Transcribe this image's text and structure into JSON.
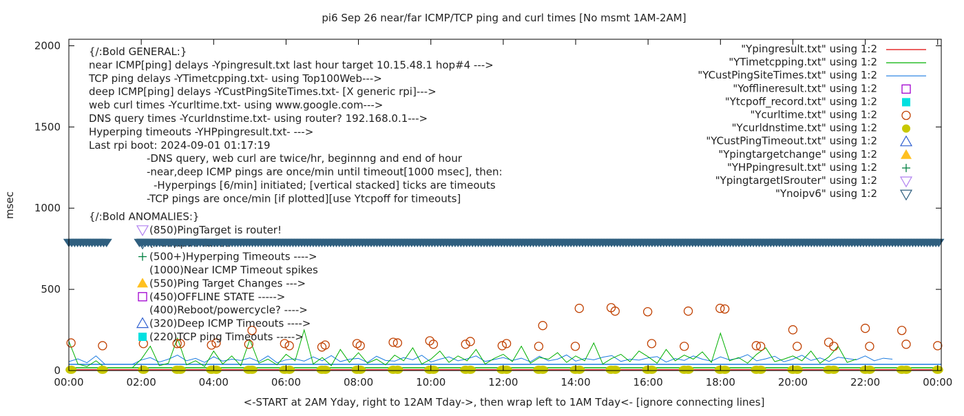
{
  "chart_data": {
    "type": "line",
    "title": "pi6 Sep 26  near/far ICMP/TCP ping and curl times [No msmt 1AM-2AM]",
    "xlabel": "<-START at 2AM Yday, right to 12AM Tday->, then wrap left to 1AM Tday<- [ignore connecting lines]",
    "ylabel": "msec",
    "xlim": [
      0,
      24.1
    ],
    "ylim": [
      0,
      2040
    ],
    "x_unit": "hour of day",
    "xticks": [
      "00:00",
      "02:00",
      "04:00",
      "06:00",
      "08:00",
      "10:00",
      "12:00",
      "14:00",
      "16:00",
      "18:00",
      "20:00",
      "22:00",
      "00:00"
    ],
    "yticks": [
      0,
      500,
      1000,
      1500,
      2000
    ],
    "grid": false,
    "legend_placement": "top-right",
    "legend": [
      {
        "label": "\"Ypingresult.txt\" using 1:2",
        "marker": "line",
        "color": "#e00000"
      },
      {
        "label": "\"YTimetcpping.txt\" using 1:2",
        "marker": "line",
        "color": "#00b000"
      },
      {
        "label": "\"YCustPingSiteTimes.txt\" using 1:2",
        "marker": "line",
        "color": "#1a7ae0"
      },
      {
        "label": "\"Yofflineresult.txt\" using 1:2",
        "marker": "open-square",
        "color": "#a000d0"
      },
      {
        "label": "\"Ytcpoff_record.txt\" using 1:2",
        "marker": "filled-square",
        "color": "#00e0e0"
      },
      {
        "label": "\"Ycurltime.txt\" using 1:2",
        "marker": "open-circle",
        "color": "#c04000"
      },
      {
        "label": "\"Ycurldnstime.txt\" using 1:2",
        "marker": "filled-circle",
        "color": "#c8c800"
      },
      {
        "label": "\"YCustPingTimeout.txt\" using 1:2",
        "marker": "open-triangle-up",
        "color": "#3060d0"
      },
      {
        "label": "\"Ypingtargetchange\" using 1:2",
        "marker": "filled-triangle-up",
        "color": "#ffc020"
      },
      {
        "label": "\"YHPpingresult.txt\" using 1:2",
        "marker": "plus",
        "color": "#008040"
      },
      {
        "label": "\"YpingtargetISrouter\" using 1:2",
        "marker": "open-triangle-down",
        "color": "#b080f0"
      },
      {
        "label": "\"Ynoipv6\" using 1:2",
        "marker": "open-triangle-down",
        "color": "#2f5f7f"
      }
    ],
    "annotations_general": {
      "header": "{/:Bold GENERAL:}",
      "lines": [
        "near ICMP[ping] delays -Ypingresult.txt last hour target 10.15.48.1 hop#4 --->",
        "TCP ping delays -YTimetcpping.txt- using Top100Web--->",
        "deep ICMP[ping] delays -YCustPingSiteTimes.txt- [X generic rpi]--->",
        "web curl times -Ycurltime.txt- using www.google.com--->",
        "DNS query times -Ycurldnstime.txt- using router? 192.168.0.1--->",
        "Hyperping timeouts -YHPpingresult.txt- --->",
        "Last rpi boot: 2024-09-01 01:17:19"
      ],
      "notes": [
        "-DNS query, web curl are twice/hr, beginnng and end of hour",
        "-near,deep ICMP pings are once/min until timeout[1000 msec], then:",
        "  -Hyperpings [6/min] initiated; [vertical stacked] ticks are timeouts",
        "-TCP pings are once/min [if plotted][use Ytcpoff for timeouts]"
      ]
    },
    "annotations_anomalies": {
      "header": "{/:Bold ANOMALIES:}",
      "items": [
        {
          "text": "(850)PingTarget is router!",
          "marker": "open-triangle-down",
          "color": "#b080f0"
        },
        {
          "text": "(785)ipv6 failed",
          "marker": "open-triangle-down",
          "color": "#2f5f7f"
        },
        {
          "text": "(500+)Hyperping Timeouts ---->",
          "marker": "plus",
          "color": "#008040"
        },
        {
          "text": "(1000)Near ICMP Timeout spikes",
          "marker": "none",
          "color": ""
        },
        {
          "text": "(550)Ping Target Changes --->",
          "marker": "filled-triangle-up",
          "color": "#ffc020"
        },
        {
          "text": "(450)OFFLINE STATE ----->",
          "marker": "open-square",
          "color": "#a000d0"
        },
        {
          "text": "(400)Reboot/powercycle? ---->",
          "marker": "none",
          "color": ""
        },
        {
          "text": "(320)Deep ICMP Timeouts ---->",
          "marker": "open-triangle-up",
          "color": "#3060d0"
        },
        {
          "text": "(220)TCP ping Timeouts ----->",
          "marker": "filled-square",
          "color": "#00e0e0"
        }
      ]
    },
    "series": {
      "ping": {
        "x_step_hours": 0.25,
        "constant": 5
      },
      "tcp": {
        "x_step_hours": 0.25,
        "values": [
          180,
          40,
          25,
          60,
          17,
          17,
          17,
          17,
          70,
          150,
          30,
          45,
          200,
          35,
          60,
          25,
          120,
          40,
          90,
          30,
          190,
          45,
          70,
          35,
          100,
          60,
          250,
          40,
          80,
          30,
          130,
          50,
          110,
          45,
          70,
          35,
          95,
          60,
          140,
          40,
          70,
          120,
          50,
          90,
          60,
          130,
          40,
          75,
          100,
          55,
          150,
          45,
          80,
          70,
          110,
          50,
          90,
          60,
          170,
          40,
          75,
          100,
          55,
          120,
          85,
          45,
          130,
          60,
          95,
          70,
          115,
          50,
          230,
          60,
          80,
          45,
          100,
          140,
          55,
          70,
          90,
          60,
          120,
          45,
          85,
          150,
          50,
          70
        ]
      },
      "deep": {
        "x_step_hours": 0.25,
        "values": [
          55,
          72,
          48,
          90,
          38,
          38,
          38,
          38,
          65,
          80,
          52,
          70,
          95,
          60,
          75,
          50,
          85,
          58,
          70,
          62,
          78,
          55,
          90,
          48,
          66,
          72,
          58,
          84,
          60,
          92,
          55,
          70,
          75,
          50,
          88,
          62,
          58,
          80,
          66,
          94,
          52,
          70,
          84,
          60,
          72,
          90,
          56,
          68,
          80,
          62,
          76,
          54,
          88,
          60,
          70,
          96,
          58,
          74,
          66,
          82,
          92,
          56,
          70,
          64,
          78,
          86,
          52,
          74,
          62,
          90,
          70,
          58,
          84,
          66,
          76,
          98,
          60,
          72,
          88,
          54,
          70,
          94,
          62,
          78,
          56,
          82,
          74,
          66,
          90,
          60,
          76,
          70
        ]
      },
      "curl": [
        [
          0.06,
          170
        ],
        [
          0.93,
          153
        ],
        [
          2.06,
          166
        ],
        [
          2.99,
          166
        ],
        [
          3.08,
          166
        ],
        [
          3.94,
          157
        ],
        [
          4.07,
          170
        ],
        [
          4.97,
          162
        ],
        [
          5.06,
          247
        ],
        [
          5.96,
          166
        ],
        [
          6.09,
          153
        ],
        [
          6.99,
          145
        ],
        [
          7.08,
          157
        ],
        [
          7.96,
          166
        ],
        [
          8.05,
          153
        ],
        [
          8.96,
          174
        ],
        [
          9.08,
          170
        ],
        [
          9.97,
          183
        ],
        [
          10.07,
          162
        ],
        [
          10.96,
          162
        ],
        [
          11.09,
          179
        ],
        [
          11.97,
          153
        ],
        [
          12.09,
          166
        ],
        [
          12.98,
          149
        ],
        [
          13.09,
          277
        ],
        [
          13.99,
          149
        ],
        [
          14.1,
          383
        ],
        [
          14.98,
          387
        ],
        [
          15.09,
          366
        ],
        [
          15.99,
          362
        ],
        [
          16.1,
          166
        ],
        [
          17.0,
          149
        ],
        [
          17.11,
          366
        ],
        [
          17.99,
          383
        ],
        [
          18.12,
          379
        ],
        [
          18.99,
          153
        ],
        [
          19.11,
          149
        ],
        [
          20.0,
          251
        ],
        [
          20.12,
          149
        ],
        [
          20.99,
          174
        ],
        [
          21.13,
          149
        ],
        [
          22.0,
          260
        ],
        [
          22.12,
          149
        ],
        [
          23.01,
          247
        ],
        [
          23.13,
          162
        ],
        [
          24.0,
          153
        ]
      ],
      "dns": {
        "value": 5,
        "x": [
          0.06,
          0.93,
          2.06,
          2.99,
          3.08,
          3.94,
          4.07,
          4.97,
          5.06,
          5.96,
          6.09,
          6.99,
          7.08,
          7.96,
          8.05,
          8.96,
          9.08,
          9.97,
          10.07,
          10.96,
          11.09,
          11.97,
          12.09,
          12.98,
          13.09,
          13.99,
          14.1,
          14.98,
          15.09,
          15.99,
          16.1,
          17.0,
          17.11,
          17.99,
          18.12,
          18.99,
          19.11,
          20.0,
          20.12,
          20.99,
          21.13,
          22.0,
          22.12,
          23.01,
          23.13,
          24.0
        ]
      },
      "noipv6": {
        "value": 785,
        "ranges": [
          [
            0,
            1.1
          ],
          [
            1.95,
            24.1
          ]
        ]
      }
    }
  }
}
